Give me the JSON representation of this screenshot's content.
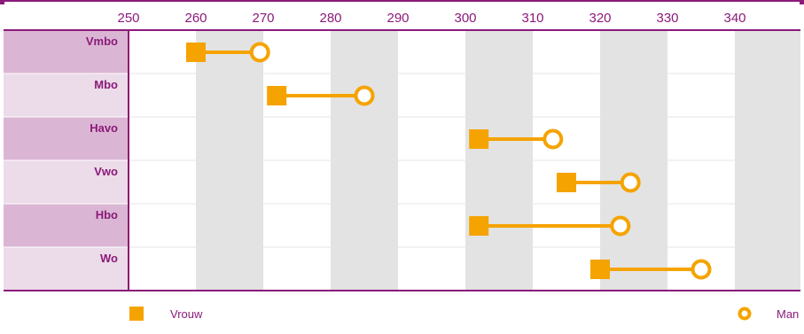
{
  "colors": {
    "accent": "#8b1a7a",
    "marker": "#f5a300",
    "row_dark": "#dbb6d4",
    "row_light": "#ecdbe8",
    "band_gray": "#e3e3e3",
    "grid_line": "#e6e6e6"
  },
  "chart_data": {
    "type": "dumbbell",
    "title": "",
    "xlabel": "",
    "ylabel": "",
    "xlim": [
      250,
      345
    ],
    "x_ticks": [
      250,
      260,
      270,
      280,
      290,
      300,
      310,
      320,
      330,
      340
    ],
    "x_tick_labels": [
      "250",
      "260",
      "270",
      "280",
      "290",
      "300",
      "310",
      "320",
      "330",
      "340"
    ],
    "categories": [
      "Vmbo",
      "Mbo",
      "Havo",
      "Vwo",
      "Hbo",
      "Wo"
    ],
    "series": [
      {
        "name": "Vrouw",
        "marker": "square",
        "values": [
          260,
          272,
          302,
          315,
          302,
          320
        ]
      },
      {
        "name": "Man",
        "marker": "open-circle",
        "values": [
          269.5,
          285,
          313,
          324.5,
          323,
          335
        ]
      }
    ],
    "grid": true,
    "legend": "bottom"
  }
}
